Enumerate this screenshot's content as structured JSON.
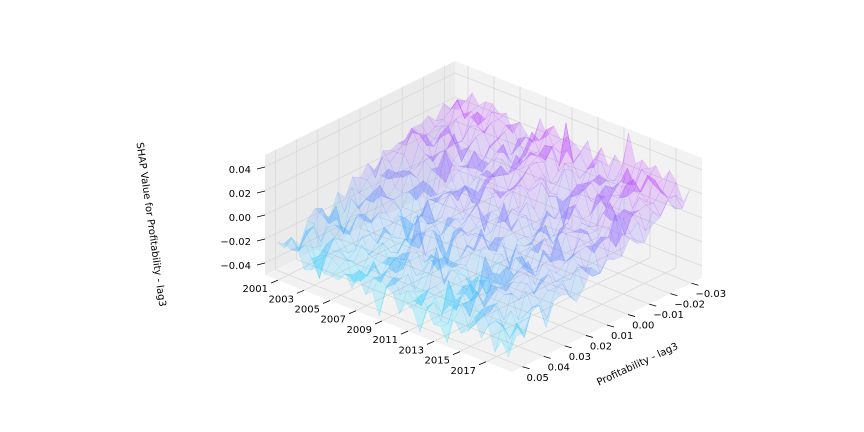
{
  "chart_data": {
    "type": "surface3d",
    "title": "",
    "xlabel": "",
    "ylabel": "Profitability - lag3",
    "zlabel": "SHAP Value for Profitability - lag3",
    "x_ticks": [
      "2001",
      "2003",
      "2005",
      "2007",
      "2009",
      "2011",
      "2013",
      "2015",
      "2017"
    ],
    "y_ticks": [
      "−0.03",
      "−0.02",
      "−0.01",
      "0.00",
      "0.01",
      "0.02",
      "0.03",
      "0.04",
      "0.05"
    ],
    "z_ticks": [
      "0.04",
      "0.02",
      "0.00",
      "−0.02",
      "−0.04"
    ],
    "xlim": [
      2000,
      2019
    ],
    "ylim": [
      -0.035,
      0.055
    ],
    "zlim": [
      -0.05,
      0.05
    ],
    "grid": true,
    "colormap": "cool",
    "colors": {
      "low": "#00ffff",
      "high": "#ff00ff",
      "pane": "#f2f2f2",
      "grid": "#d9d9d9"
    },
    "surface_samples": [
      {
        "x": 2001,
        "y": 0.05,
        "z": -0.032
      },
      {
        "x": 2005,
        "y": 0.05,
        "z": -0.034
      },
      {
        "x": 2009,
        "y": 0.05,
        "z": -0.036
      },
      {
        "x": 2013,
        "y": 0.05,
        "z": -0.035
      },
      {
        "x": 2017,
        "y": 0.05,
        "z": -0.03
      },
      {
        "x": 2001,
        "y": 0.01,
        "z": -0.012
      },
      {
        "x": 2005,
        "y": 0.01,
        "z": -0.01
      },
      {
        "x": 2009,
        "y": 0.01,
        "z": -0.012
      },
      {
        "x": 2013,
        "y": 0.01,
        "z": -0.008
      },
      {
        "x": 2017,
        "y": 0.01,
        "z": -0.006
      },
      {
        "x": 2001,
        "y": -0.03,
        "z": 0.02
      },
      {
        "x": 2005,
        "y": -0.03,
        "z": 0.025
      },
      {
        "x": 2009,
        "y": -0.03,
        "z": 0.028
      },
      {
        "x": 2013,
        "y": -0.03,
        "z": 0.026
      },
      {
        "x": 2017,
        "y": -0.03,
        "z": 0.024
      }
    ]
  }
}
